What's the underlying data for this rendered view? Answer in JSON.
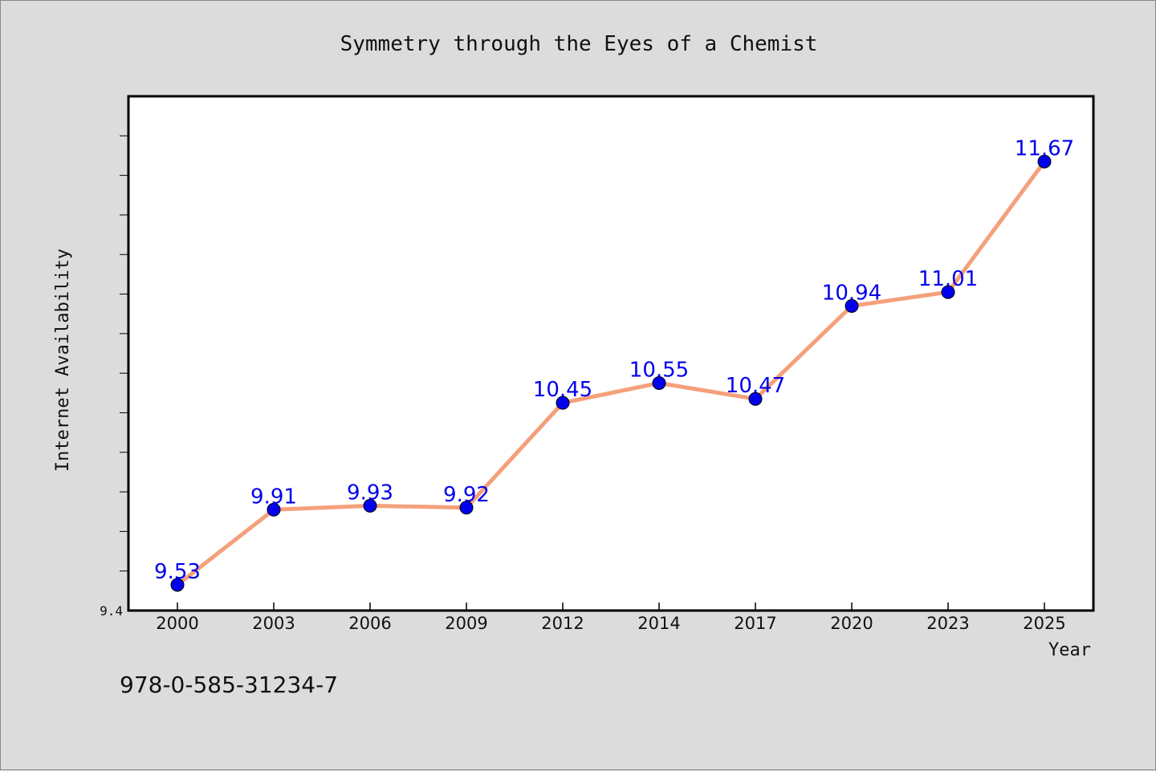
{
  "chart_data": {
    "type": "line",
    "title": "Symmetry through the Eyes of a Chemist",
    "xlabel": "Year",
    "ylabel": "Internet Availability",
    "categories": [
      "2000",
      "2003",
      "2006",
      "2009",
      "2012",
      "2014",
      "2017",
      "2020",
      "2023",
      "2025"
    ],
    "series": [
      {
        "values": [
          9.53,
          9.91,
          9.93,
          9.92,
          10.45,
          10.55,
          10.47,
          10.94,
          11.01,
          11.67
        ]
      }
    ],
    "data_labels": [
      "9.53",
      "9.91",
      "9.93",
      "9.92",
      "10.45",
      "10.55",
      "10.47",
      "10.94",
      "11.01",
      "11.67"
    ],
    "y_tick_labels": [
      "9.4"
    ],
    "ylim": [
      9.4,
      12.0
    ],
    "grid": false,
    "legend": "none",
    "colors": {
      "line": "#f4a07a",
      "marker": "#0000ee",
      "label": "#0000ee",
      "background": "#dcdcdc",
      "plot": "#ffffff"
    }
  },
  "footer": {
    "isbn": "978-0-585-31234-7"
  }
}
